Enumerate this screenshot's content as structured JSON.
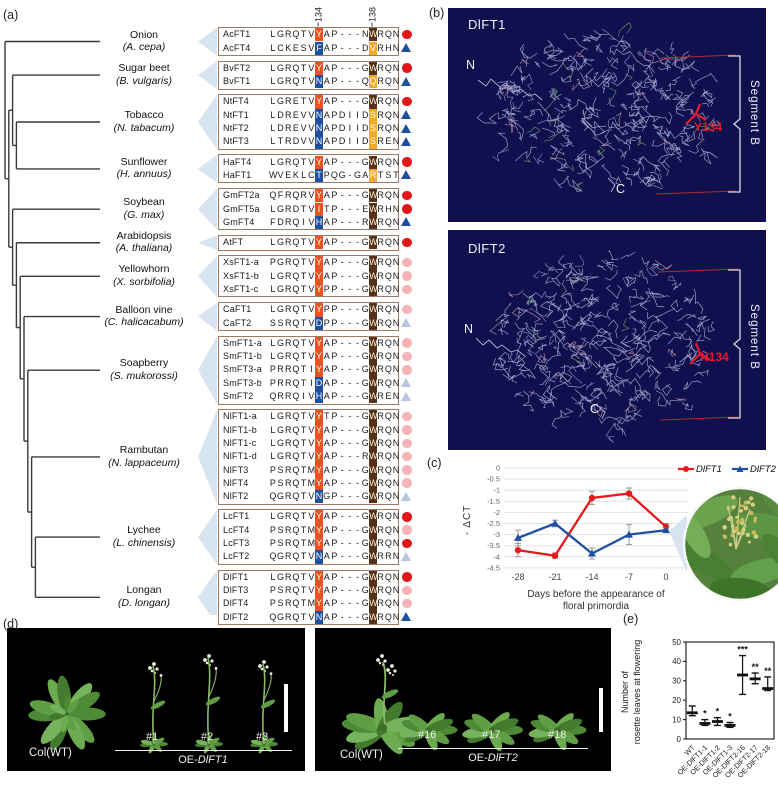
{
  "figure": {
    "panel_a": "(a)",
    "panel_b": "(b)",
    "panel_c": "(c)",
    "panel_d": "(d)",
    "panel_d_photo": "(D)",
    "panel_e": "(e)"
  },
  "colors": {
    "hl_134_conserved": "#f04e23",
    "hl_134_variant": "#1f4fa0",
    "hl_138_conserved": "#55301a",
    "hl_138_variant": "#f0a929",
    "marker_red": "#e0161b",
    "marker_blue": "#1d4f9e",
    "protein_bg": "#10104e",
    "wedge": "#d9e4f1",
    "series_dlft1": "#e8191c",
    "series_dlft2": "#1f4fa0"
  },
  "alignment": {
    "col_headers": [
      "134",
      "138"
    ],
    "groups": [
      {
        "species": "Onion",
        "latin": "(A. cepa)",
        "rows": [
          {
            "gene": "AcFT1",
            "seq": "LGRQTVYAP---NWRQN",
            "c134": "orange",
            "c138": "brown",
            "marker": "red-circle"
          },
          {
            "gene": "AcFT4",
            "seq": "LCKESVFAP---DVRHN",
            "c134": "blue",
            "c138": "yellow",
            "marker": "blue-triangle"
          }
        ]
      },
      {
        "species": "Sugar beet",
        "latin": "(B. vulgaris)",
        "rows": [
          {
            "gene": "BvFT2",
            "seq": "LGRQTVYAP---GWRQN",
            "c134": "orange",
            "c138": "brown",
            "marker": "red-circle"
          },
          {
            "gene": "BvFT1",
            "seq": "LGRQTVNAP---QQRQN",
            "c134": "blue",
            "c138": "yellow",
            "marker": "blue-triangle"
          }
        ]
      },
      {
        "species": "Tobacco",
        "latin": "(N. tabacum)",
        "rows": [
          {
            "gene": "NtFT4",
            "seq": "LGRETVYAP---GWRQN",
            "c134": "orange",
            "c138": "brown",
            "marker": "red-circle"
          },
          {
            "gene": "NtFT1",
            "seq": "LDREVVNAPDIIDSRQN",
            "c134": "blue",
            "c138": "yellow",
            "marker": "blue-triangle"
          },
          {
            "gene": "NtFT2",
            "seq": "LDREVVNAPDIIDSRQN",
            "c134": "blue",
            "c138": "yellow",
            "marker": "blue-triangle"
          },
          {
            "gene": "NtFT3",
            "seq": "LTRDVVNAPDIIDSREN",
            "c134": "blue",
            "c138": "yellow",
            "marker": "blue-triangle"
          }
        ]
      },
      {
        "species": "Sunflower",
        "latin": "(H. annuus)",
        "rows": [
          {
            "gene": "HaFT4",
            "seq": "LGRQTVYAP---GWRQN",
            "c134": "orange",
            "c138": "brown",
            "marker": "red-circle"
          },
          {
            "gene": "HaFT1",
            "seq": "WVEKLCTPQG-GARTST",
            "c134": "blue",
            "c138": "yellow",
            "marker": "blue-triangle"
          }
        ]
      },
      {
        "species": "Soybean",
        "latin": "(G. max)",
        "rows": [
          {
            "gene": "GmFT2a",
            "seq": "QFRQRVYAP---GWRQN",
            "c134": "orange",
            "c138": "brown",
            "marker": "red-circle"
          },
          {
            "gene": "GmFT5a",
            "seq": "LGRDTVITP---EWRHN",
            "c134": "orange",
            "c138": "brown",
            "marker": "red-circle"
          },
          {
            "gene": "GmFT4",
            "seq": "FDRQIVHAP---RWRQN",
            "c134": "blue",
            "c138": "brown",
            "marker": "blue-triangle"
          }
        ]
      },
      {
        "species": "Arabidopsis",
        "latin": "(A. thaliana)",
        "rows": [
          {
            "gene": "AtFT",
            "seq": "LGRQTVYAP---GWRQN",
            "c134": "orange",
            "c138": "brown",
            "marker": "red-circle"
          }
        ]
      },
      {
        "species": "Yellowhorn",
        "latin": "(X. sorbifolia)",
        "rows": [
          {
            "gene": "XsFT1-a",
            "seq": "PGRQTVYAP---GWRQN",
            "c134": "orange",
            "c138": "brown",
            "marker": "pale-red-circle"
          },
          {
            "gene": "XsFT1-b",
            "seq": "LGRQTVYAP---GWRQN",
            "c134": "orange",
            "c138": "brown",
            "marker": "pale-red-circle"
          },
          {
            "gene": "XsFT1-c",
            "seq": "LGRQTVYPP---GWRQN",
            "c134": "orange",
            "c138": "brown",
            "marker": "pale-red-circle"
          }
        ]
      },
      {
        "species": "Balloon vine",
        "latin": "(C. halicacabum)",
        "rows": [
          {
            "gene": "CaFT1",
            "seq": "LGRQTVYPP---GWRQN",
            "c134": "orange",
            "c138": "brown",
            "marker": "pale-red-circle"
          },
          {
            "gene": "CaFT2",
            "seq": "SSRQTVDPP---GWRQN",
            "c134": "blue",
            "c138": "brown",
            "marker": "pale-blue-triangle"
          }
        ]
      },
      {
        "species": "Soapberry",
        "latin": "(S. mukorossi)",
        "rows": [
          {
            "gene": "SmFT1-a",
            "seq": "LGRQTVYAP---GWRQN",
            "c134": "orange",
            "c138": "brown",
            "marker": "pale-red-circle"
          },
          {
            "gene": "SmFT1-b",
            "seq": "LGRQTVYAP---GWRQN",
            "c134": "orange",
            "c138": "brown",
            "marker": "pale-red-circle"
          },
          {
            "gene": "SmFT3-a",
            "seq": "PRRQTIYAP---GWRQN",
            "c134": "orange",
            "c138": "brown",
            "marker": "pale-red-circle"
          },
          {
            "gene": "SmFT3-b",
            "seq": "PRRQTIDAP---GWRQN",
            "c134": "blue",
            "c138": "brown",
            "marker": "pale-blue-triangle"
          },
          {
            "gene": "SmFT2",
            "seq": "QRRQIVHAP---GWREN",
            "c134": "blue",
            "c138": "brown",
            "marker": "pale-blue-triangle"
          }
        ]
      },
      {
        "species": "Rambutan",
        "latin": "(N. lappaceum)",
        "rows": [
          {
            "gene": "NlFT1-a",
            "seq": "LGRQTVYTP---GWRQN",
            "c134": "orange",
            "c138": "brown",
            "marker": "pale-red-circle"
          },
          {
            "gene": "NlFT1-b",
            "seq": "LGRQTVYAP---GWRQN",
            "c134": "orange",
            "c138": "brown",
            "marker": "pale-red-circle"
          },
          {
            "gene": "NlFT1-c",
            "seq": "LGRQTVYAP---GWRQN",
            "c134": "orange",
            "c138": "brown",
            "marker": "pale-red-circle"
          },
          {
            "gene": "NlFT1-d",
            "seq": "LGRQTVYAP---RWRQN",
            "c134": "orange",
            "c138": "brown",
            "marker": "pale-red-circle"
          },
          {
            "gene": "NlFT3",
            "seq": "PSRQTMYAP---GWRQN",
            "c134": "orange",
            "c138": "brown",
            "marker": "pale-red-circle"
          },
          {
            "gene": "NlFT4",
            "seq": "PSRQTMYAP---GWRQN",
            "c134": "orange",
            "c138": "brown",
            "marker": "pale-red-circle"
          },
          {
            "gene": "NlFT2",
            "seq": "QGRQTVNGP---GWRQN",
            "c134": "blue",
            "c138": "brown",
            "marker": "pale-blue-triangle"
          }
        ]
      },
      {
        "species": "Lychee",
        "latin": "(L. chinensis)",
        "rows": [
          {
            "gene": "LcFT1",
            "seq": "LGRQTVYAP---GWRQN",
            "c134": "orange",
            "c138": "brown",
            "marker": "red-circle"
          },
          {
            "gene": "LcFT4",
            "seq": "PSRQTMYAP---GWRQN",
            "c134": "orange",
            "c138": "brown",
            "marker": "pale-red-circle"
          },
          {
            "gene": "LcFT3",
            "seq": "PSRQTMYAP---GWRQN",
            "c134": "orange",
            "c138": "brown",
            "marker": "red-circle"
          },
          {
            "gene": "LcFT2",
            "seq": "QGRQTVNAP---GWRRN",
            "c134": "blue",
            "c138": "brown",
            "marker": "pale-blue-triangle"
          }
        ]
      },
      {
        "species": "Longan",
        "latin": "(D. longan)",
        "rows": [
          {
            "gene": "DlFT1",
            "seq": "LGRQTVYAP---GWRQN",
            "c134": "orange",
            "c138": "brown",
            "marker": "red-circle"
          },
          {
            "gene": "DlFT3",
            "seq": "PSRQTVYAP---GWRQN",
            "c134": "orange",
            "c138": "brown",
            "marker": "pale-red-circle"
          },
          {
            "gene": "DlFT4",
            "seq": "PSRQTMYAP---GWRQN",
            "c134": "orange",
            "c138": "brown",
            "marker": "pale-red-circle"
          },
          {
            "gene": "DlFT2",
            "seq": "QGRQTVNAP---GWRQN",
            "c134": "blue",
            "c138": "brown",
            "marker": "blue-triangle"
          }
        ]
      }
    ]
  },
  "proteins": [
    {
      "title": "DlFT1",
      "n_label": "N",
      "c_label": "C",
      "residue_label": "Y134",
      "segment_label": "Segment B"
    },
    {
      "title": "DlFT2",
      "n_label": "N",
      "c_label": "C",
      "residue_label": "N134",
      "segment_label": "Segment B"
    }
  ],
  "chart_data": [
    {
      "id": "expression-timecourse",
      "type": "line",
      "xlabel_line1": "Days before the appearance of",
      "xlabel_line2": "floral primordia",
      "ylabel": "- ΔCT",
      "x": [
        -28,
        -21,
        -14,
        -7,
        0
      ],
      "ylim": [
        -4.5,
        0
      ],
      "yticks": [
        "0",
        "-0.5",
        "-1",
        "-1.5",
        "-2",
        "-2.5",
        "-3",
        "-3.5",
        "-4",
        "-4.5"
      ],
      "grid": true,
      "legend_position": "top-right",
      "series": [
        {
          "name": "DlFT1",
          "color": "#e8191c",
          "marker": "circle",
          "values": [
            -3.7,
            -3.95,
            -1.35,
            -1.15,
            -2.65
          ],
          "err": [
            0.3,
            0.12,
            0.3,
            0.25,
            0.15
          ]
        },
        {
          "name": "DlFT2",
          "color": "#1f4fa0",
          "marker": "triangle",
          "values": [
            -3.15,
            -2.5,
            -3.85,
            -3.0,
            -2.8
          ],
          "err": [
            0.35,
            0.15,
            0.25,
            0.45,
            0.1
          ]
        }
      ]
    },
    {
      "id": "rosette-leaves",
      "type": "whisker",
      "ylabel_line1": "Number of",
      "ylabel_line2": "rosette leaves at flowering",
      "categories": [
        "WT",
        "OE-DlFT1-1",
        "OE-DlFT1-2",
        "OE-DlFT1-3",
        "OE-DlFT2-16",
        "OE-DlFT2-17",
        "OE-DlFT2-18"
      ],
      "mean": [
        13.5,
        8,
        9,
        7,
        33,
        31,
        26
      ],
      "lo": [
        12,
        7,
        7,
        6,
        23,
        28.5,
        25
      ],
      "hi": [
        17,
        10,
        11,
        8.5,
        43,
        34,
        32
      ],
      "sig": [
        "",
        "*",
        "*",
        "*",
        "***",
        "**",
        "**"
      ],
      "ylim": [
        0,
        50
      ],
      "yticks": [
        0,
        10,
        20,
        30,
        40,
        50
      ]
    }
  ],
  "photos": {
    "left": {
      "wt_label": "Col(WT)",
      "lines": [
        "#1",
        "#2",
        "#3"
      ],
      "group_prefix": "OE-",
      "group_gene": "DlFT1"
    },
    "right": {
      "wt_label": "Col(WT)",
      "lines": [
        "#16",
        "#17",
        "#18"
      ],
      "group_prefix": "OE-",
      "group_gene": "DlFT2"
    }
  }
}
